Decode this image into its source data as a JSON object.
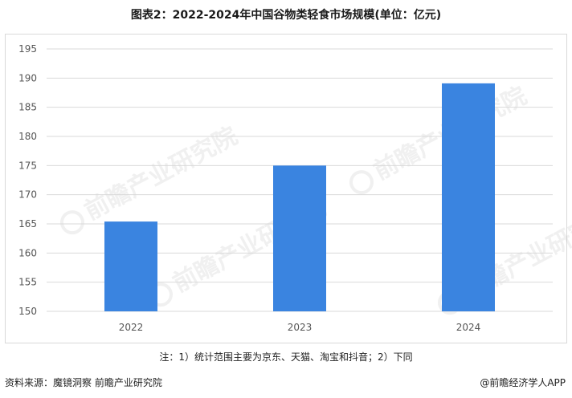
{
  "header": {
    "title": "图表2：2022-2024年中国谷物类轻食市场规模(单位：亿元)"
  },
  "footer": {
    "note": "注：1）统计范围主要为京东、天猫、淘宝和抖音；2）下同",
    "source": "资料来源：魔镜洞察 前瞻产业研究院",
    "brand": "@前瞻经济学人APP"
  },
  "watermark": {
    "text": "前瞻产业研究院"
  },
  "colors": {
    "bar": "#3a84e0",
    "grid": "#d9d9d9",
    "axis_text": "#555555"
  },
  "chart_data": {
    "type": "bar",
    "categories": [
      "2022",
      "2023",
      "2024"
    ],
    "values": [
      165.4,
      175.0,
      189.1
    ],
    "title": "图表2：2022-2024年中国谷物类轻食市场规模(单位：亿元)",
    "xlabel": "",
    "ylabel": "",
    "ylim": [
      150,
      195
    ],
    "yticks": [
      150,
      155,
      160,
      165,
      170,
      175,
      180,
      185,
      190,
      195
    ],
    "grid": true,
    "legend": "none"
  }
}
